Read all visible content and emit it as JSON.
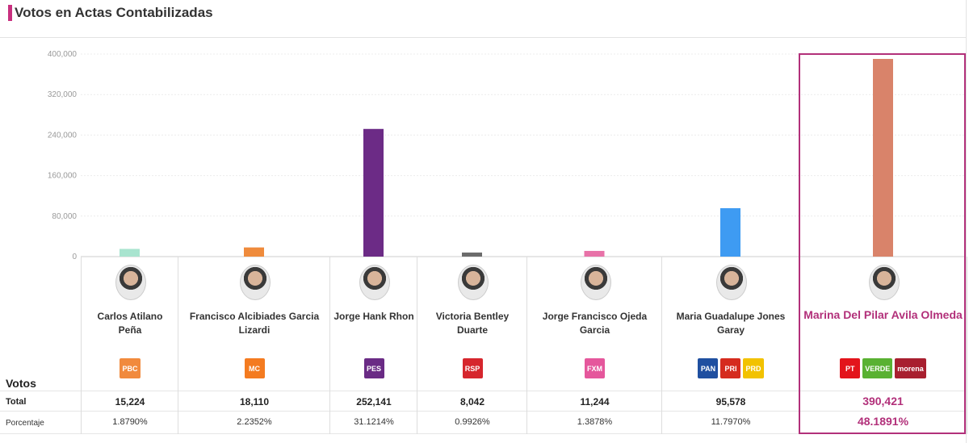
{
  "header": {
    "title": "Votos en Actas Contabilizadas"
  },
  "row_labels": {
    "votos": "Votos",
    "total": "Total",
    "porcentaje": "Porcentaje"
  },
  "chart_data": {
    "type": "bar",
    "title": "Votos en Actas Contabilizadas",
    "xlabel": "",
    "ylabel": "",
    "ylim": [
      0,
      400000
    ],
    "yticks": [
      "400,000",
      "320,000",
      "240,000",
      "160,000",
      "80,000",
      "0"
    ],
    "ytick_values": [
      400000,
      320000,
      240000,
      160000,
      80000,
      0
    ],
    "grid": true,
    "categories": [
      "Carlos Atilano Peña",
      "Francisco Alcibiades Garcia Lizardi",
      "Jorge Hank Rhon",
      "Victoria Bentley Duarte",
      "Jorge Francisco Ojeda Garcia",
      "Maria Guadalupe Jones Garay",
      "Marina Del Pilar Avila Olmeda"
    ],
    "values": [
      15224,
      18110,
      252141,
      8042,
      11244,
      95578,
      390421
    ],
    "colors": [
      "#a8e4cf",
      "#ef8b3c",
      "#6c2b86",
      "#6b6b6b",
      "#e872a8",
      "#3e9bf2",
      "#d9836a"
    ]
  },
  "candidates": [
    {
      "name": "Carlos Atilano Peña",
      "votes": "15,224",
      "percent": "1.8790%",
      "logos": [
        {
          "text": "PBC",
          "color": "#f18a3d"
        }
      ]
    },
    {
      "name": "Francisco Alcibiades Garcia Lizardi",
      "votes": "18,110",
      "percent": "2.2352%",
      "logos": [
        {
          "text": "MC",
          "color": "#f47b20"
        }
      ]
    },
    {
      "name": "Jorge Hank Rhon",
      "votes": "252,141",
      "percent": "31.1214%",
      "logos": [
        {
          "text": "PES",
          "color": "#6a2b85"
        }
      ]
    },
    {
      "name": "Victoria Bentley Duarte",
      "votes": "8,042",
      "percent": "0.9926%",
      "logos": [
        {
          "text": "RSP",
          "color": "#d6262d"
        }
      ]
    },
    {
      "name": "Jorge Francisco Ojeda Garcia",
      "votes": "11,244",
      "percent": "1.3878%",
      "logos": [
        {
          "text": "FXM",
          "color": "#e5579c"
        }
      ]
    },
    {
      "name": "Maria Guadalupe Jones Garay",
      "votes": "95,578",
      "percent": "11.7970%",
      "logos": [
        {
          "text": "PAN",
          "color": "#1f4fa0"
        },
        {
          "text": "PRI",
          "color": "#d52b1e"
        },
        {
          "text": "PRD",
          "color": "#f2c200"
        }
      ]
    },
    {
      "name": "Marina Del Pilar Avila Olmeda",
      "votes": "390,421",
      "percent": "48.1891%",
      "logos": [
        {
          "text": "PT",
          "color": "#e3141b"
        },
        {
          "text": "VERDE",
          "color": "#59b132"
        },
        {
          "text": "morena",
          "color": "#a81f2f"
        }
      ]
    }
  ]
}
